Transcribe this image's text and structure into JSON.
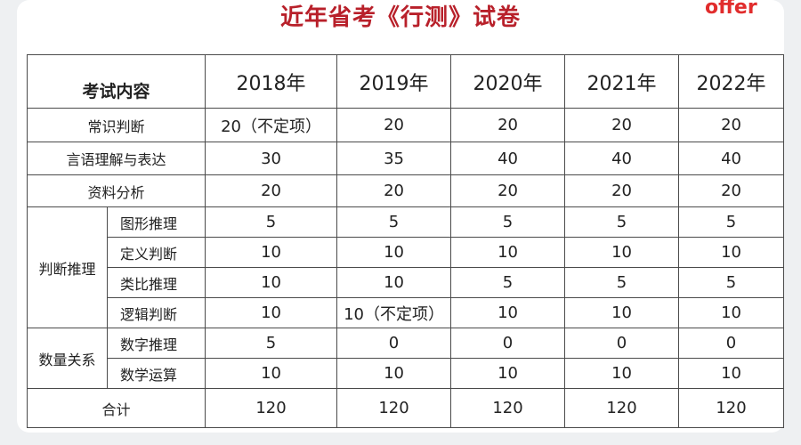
{
  "title": "近年省考《行测》试卷",
  "brand_fragment": "offer",
  "colors": {
    "title": "#b8202a",
    "border": "#4a4a4a"
  },
  "table": {
    "header_label": "考试内容",
    "years": [
      "2018年",
      "2019年",
      "2020年",
      "2021年",
      "2022年"
    ],
    "rows": [
      {
        "label": "常识判断",
        "values": [
          "20（不定项）",
          "20",
          "20",
          "20",
          "20"
        ]
      },
      {
        "label": "言语理解与表达",
        "values": [
          "30",
          "35",
          "40",
          "40",
          "40"
        ]
      },
      {
        "label": "资料分析",
        "values": [
          "20",
          "20",
          "20",
          "20",
          "20"
        ]
      }
    ],
    "groups": [
      {
        "label": "判断推理",
        "rows": [
          {
            "label": "图形推理",
            "values": [
              "5",
              "5",
              "5",
              "5",
              "5"
            ]
          },
          {
            "label": "定义判断",
            "values": [
              "10",
              "10",
              "10",
              "10",
              "10"
            ]
          },
          {
            "label": "类比推理",
            "values": [
              "10",
              "10",
              "5",
              "5",
              "5"
            ]
          },
          {
            "label": "逻辑判断",
            "values": [
              "10",
              "10（不定项）",
              "10",
              "10",
              "10"
            ]
          }
        ]
      },
      {
        "label": "数量关系",
        "rows": [
          {
            "label": "数字推理",
            "values": [
              "5",
              "0",
              "0",
              "0",
              "0"
            ]
          },
          {
            "label": "数学运算",
            "values": [
              "10",
              "10",
              "10",
              "10",
              "10"
            ]
          }
        ]
      }
    ],
    "total": {
      "label": "合计",
      "values": [
        "120",
        "120",
        "120",
        "120",
        "120"
      ]
    }
  }
}
